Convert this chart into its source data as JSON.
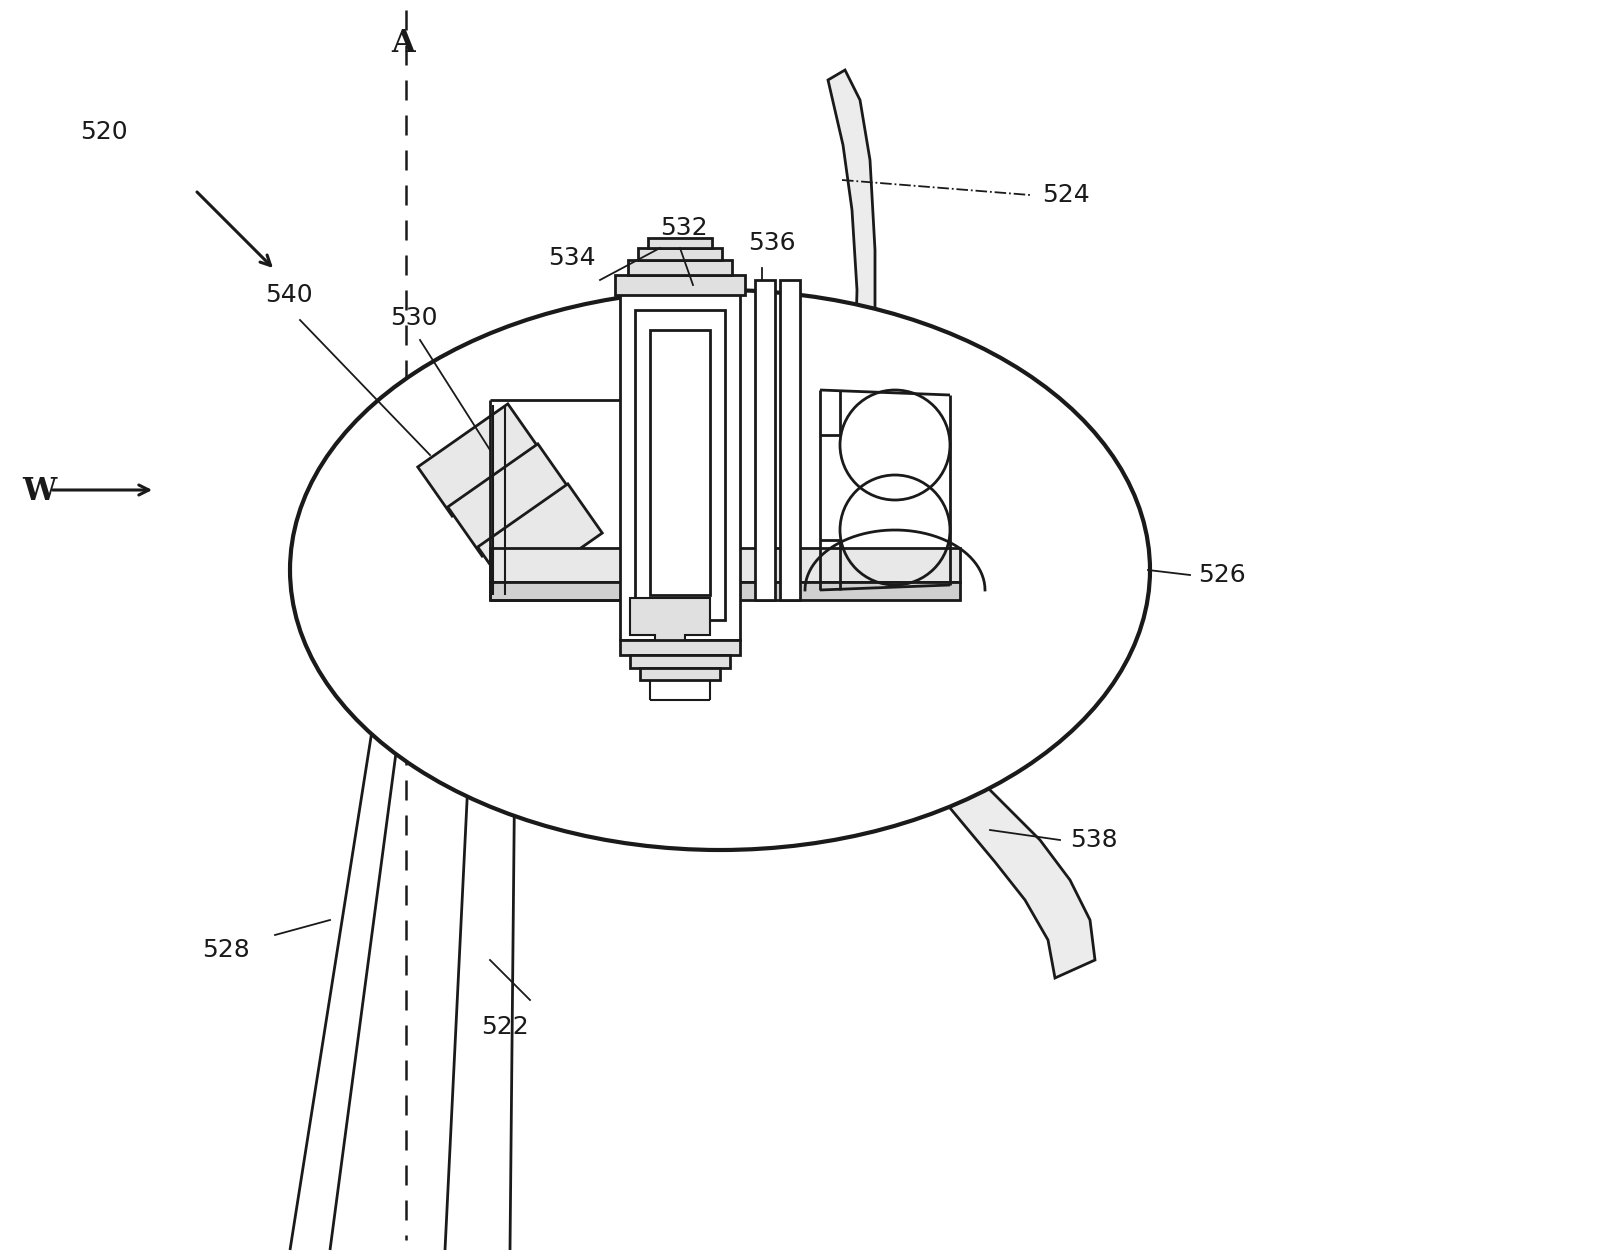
{
  "bg_color": "#ffffff",
  "line_color": "#1a1a1a",
  "fig_width": 16.23,
  "fig_height": 12.58,
  "dpi": 100
}
